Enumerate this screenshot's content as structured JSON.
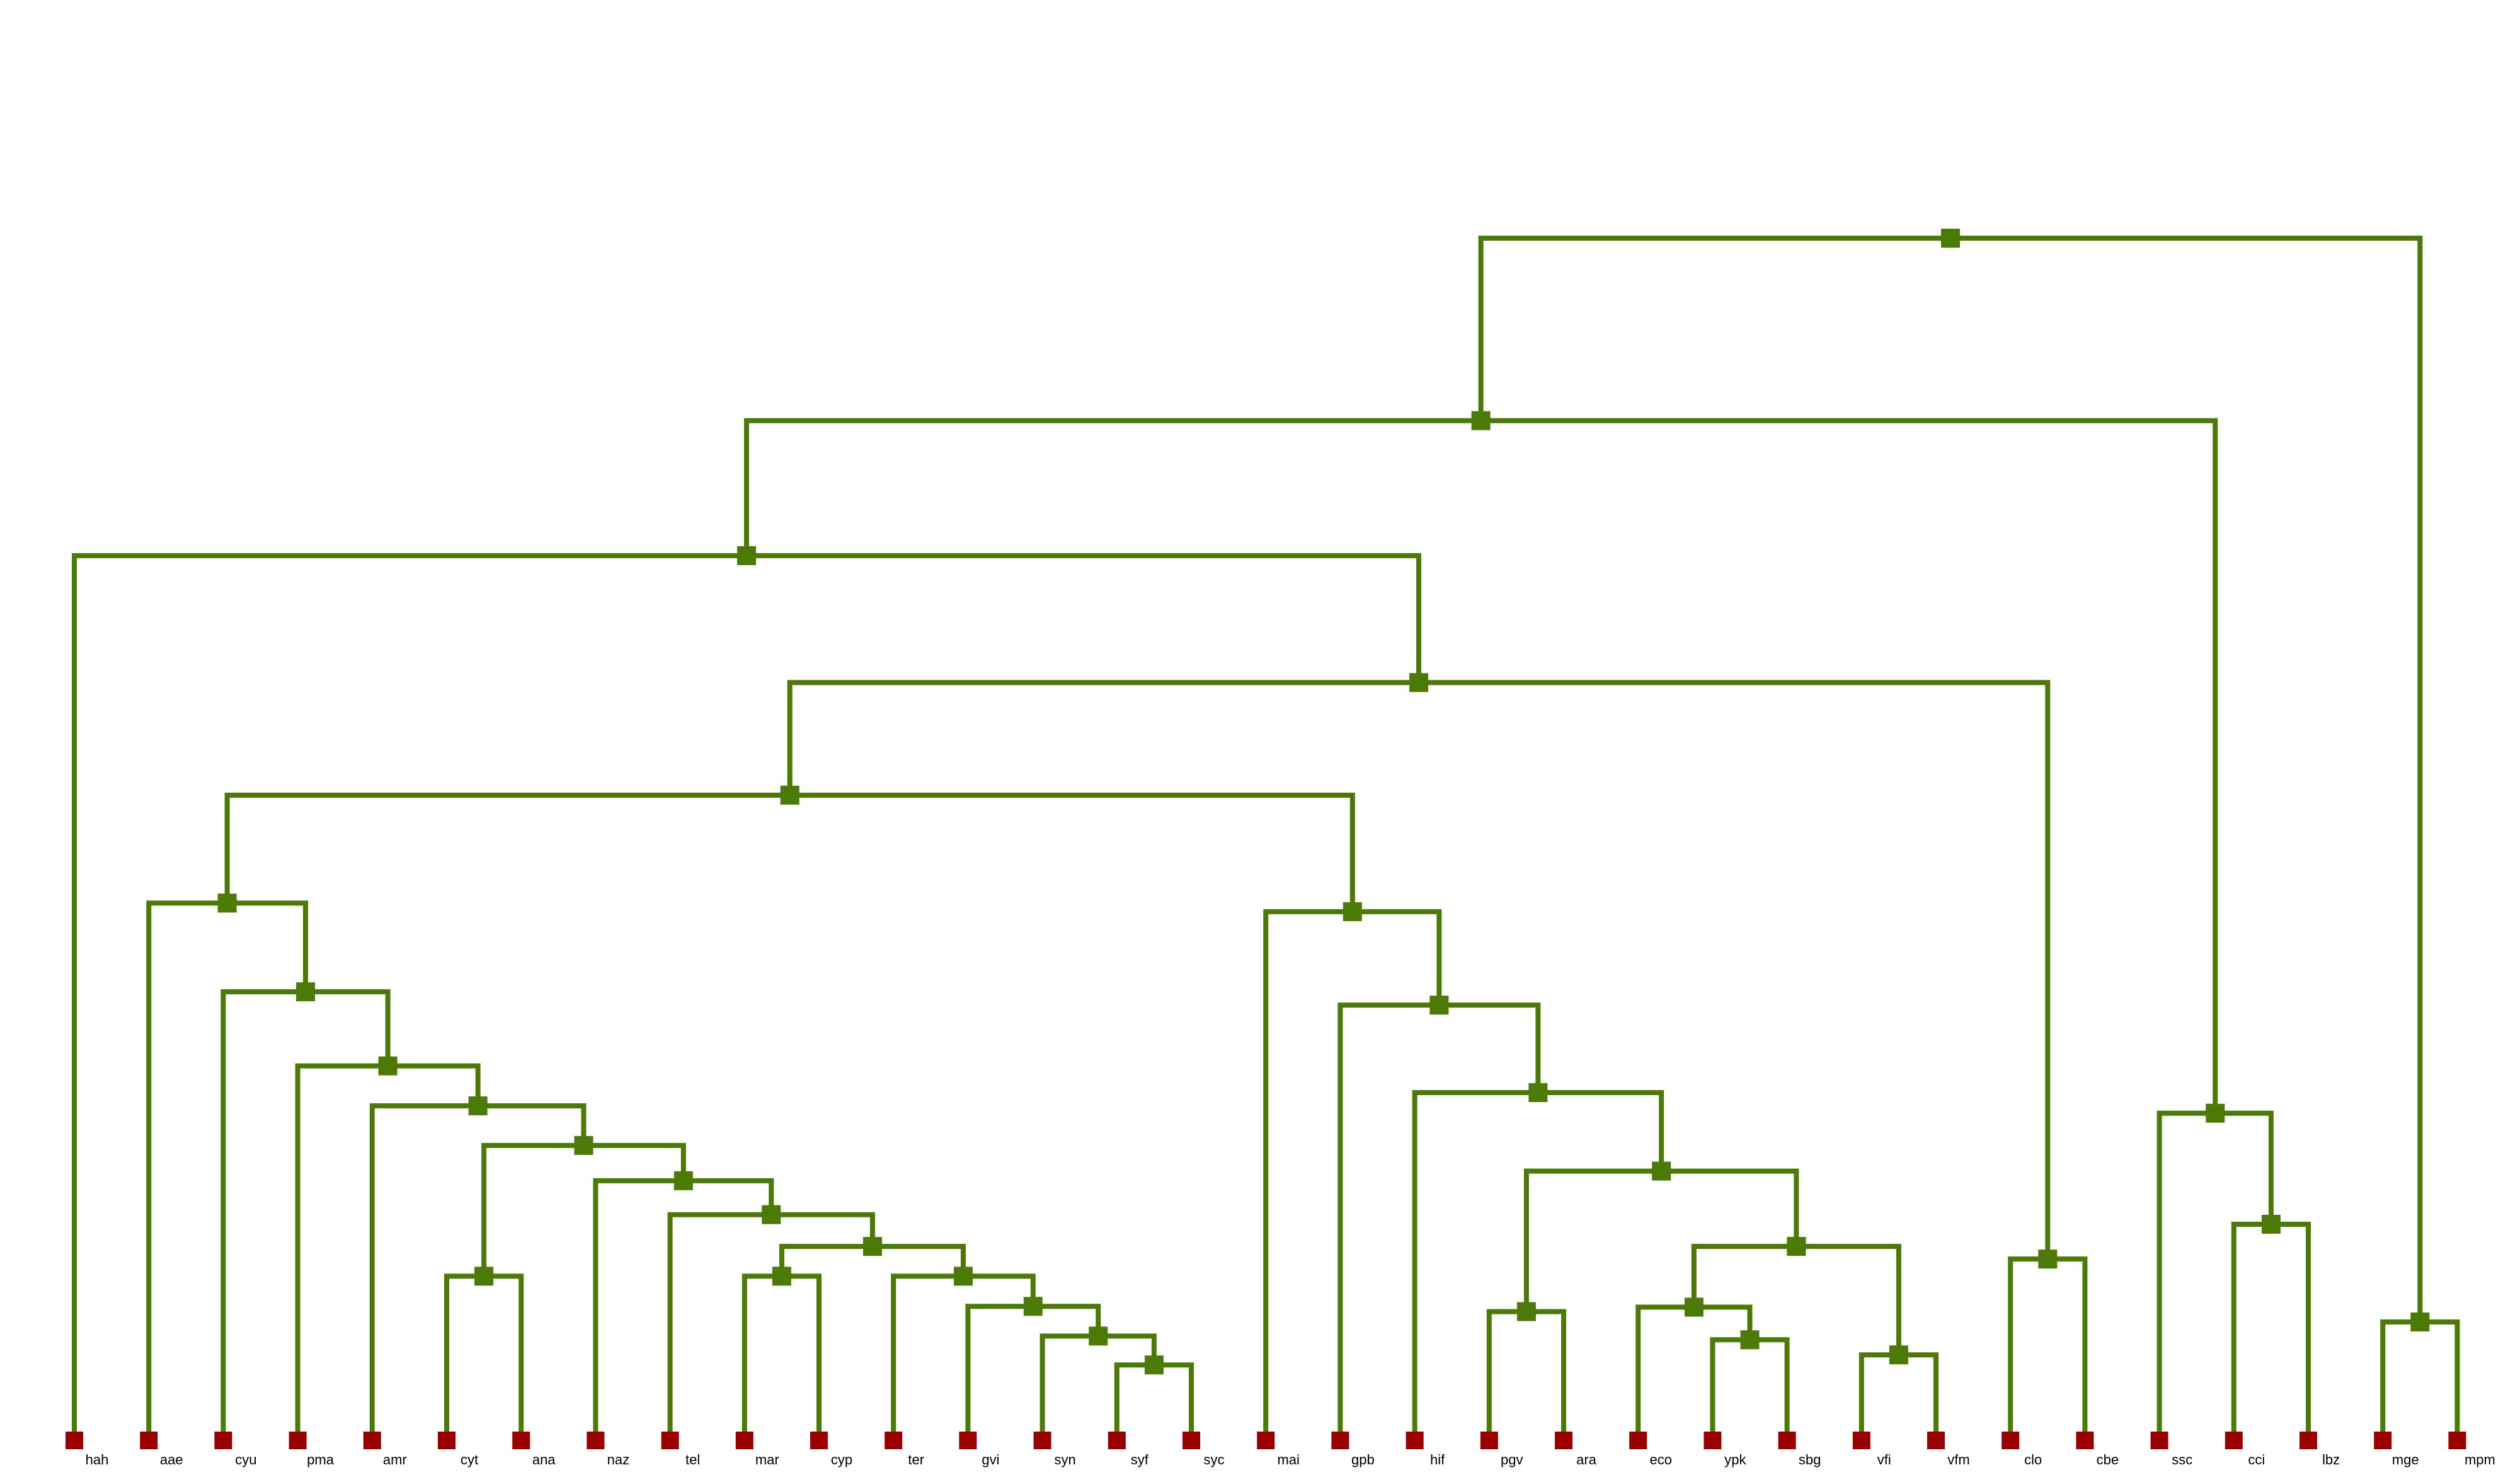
{
  "colors": {
    "edge": "#4c7a06",
    "inner_node": "#4c7a06",
    "leaf_node": "#9b0000",
    "label": "#000000",
    "background": "#ffffff"
  },
  "leaves": [
    "hah",
    "aae",
    "cyu",
    "pma",
    "amr",
    "cyt",
    "ana",
    "naz",
    "tel",
    "mar",
    "cyp",
    "ter",
    "gvi",
    "syn",
    "syf",
    "syc",
    "mai",
    "gpb",
    "hif",
    "pgv",
    "ara",
    "eco",
    "ypk",
    "sbg",
    "vfi",
    "vfm",
    "clo",
    "cbe",
    "ssc",
    "cci",
    "lbz",
    "mge",
    "mpm"
  ],
  "tree": {
    "h": 0.0,
    "children": [
      {
        "h": 0.2125,
        "children": [
          {
            "h": 0.3697,
            "children": [
              {
                "leaf": "hah"
              },
              {
                "h": 0.5175,
                "children": [
                  {
                    "h": 0.6486,
                    "children": [
                      {
                        "h": 0.7743,
                        "children": [
                          {
                            "leaf": "aae"
                          },
                          {
                            "h": 0.8776,
                            "children": [
                              {
                                "leaf": "cyu"
                              },
                              {
                                "h": 0.9639,
                                "children": [
                                  {
                                    "leaf": "pma"
                                  },
                                  {
                                    "h": 1.0104,
                                    "children": [
                                      {
                                        "leaf": "amr"
                                      },
                                      {
                                        "h": 1.0565,
                                        "children": [
                                          {
                                            "h": 1.2088,
                                            "children": [
                                              {
                                                "leaf": "cyt"
                                              },
                                              {
                                                "leaf": "ana"
                                              }
                                            ]
                                          },
                                          {
                                            "h": 1.0976,
                                            "children": [
                                              {
                                                "leaf": "naz"
                                              },
                                              {
                                                "h": 1.1371,
                                                "children": [
                                                  {
                                                    "leaf": "tel"
                                                  },
                                                  {
                                                    "h": 1.1741,
                                                    "children": [
                                                      {
                                                        "h": 1.2088,
                                                        "children": [
                                                          {
                                                            "leaf": "mar"
                                                          },
                                                          {
                                                            "leaf": "cyp"
                                                          }
                                                        ]
                                                      },
                                                      {
                                                        "h": 1.2088,
                                                        "children": [
                                                          {
                                                            "leaf": "ter"
                                                          },
                                                          {
                                                            "h": 1.2439,
                                                            "children": [
                                                              {
                                                                "leaf": "gvi"
                                                              },
                                                              {
                                                                "h": 1.2785,
                                                                "children": [
                                                                  {
                                                                    "leaf": "syn"
                                                                  },
                                                                  {
                                                                    "h": 1.3121,
                                                                    "children": [
                                                                      {
                                                                        "leaf": "syf"
                                                                      },
                                                                      {
                                                                        "leaf": "syc"
                                                                      }
                                                                    ]
                                                                  }
                                                                ]
                                                              }
                                                            ]
                                                          }
                                                        ]
                                                      }
                                                    ]
                                                  }
                                                ]
                                              }
                                            ]
                                          }
                                        ]
                                      }
                                    ]
                                  }
                                ]
                              }
                            ]
                          }
                        ]
                      },
                      {
                        "h": 0.7843,
                        "children": [
                          {
                            "leaf": "mai"
                          },
                          {
                            "h": 0.8931,
                            "children": [
                              {
                                "leaf": "gpb"
                              },
                              {
                                "h": 0.995,
                                "children": [
                                  {
                                    "leaf": "hif"
                                  },
                                  {
                                    "h": 1.0864,
                                    "children": [
                                      {
                                        "h": 1.25,
                                        "children": [
                                          {
                                            "leaf": "pgv"
                                          },
                                          {
                                            "leaf": "ara"
                                          }
                                        ]
                                      },
                                      {
                                        "h": 1.1741,
                                        "children": [
                                          {
                                            "h": 1.2448,
                                            "children": [
                                              {
                                                "leaf": "eco"
                                              },
                                              {
                                                "h": 1.2828,
                                                "children": [
                                                  {
                                                    "leaf": "ypk"
                                                  },
                                                  {
                                                    "leaf": "sbg"
                                                  }
                                                ]
                                              }
                                            ]
                                          },
                                          {
                                            "h": 1.3004,
                                            "children": [
                                              {
                                                "leaf": "vfi"
                                              },
                                              {
                                                "leaf": "vfm"
                                              }
                                            ]
                                          }
                                        ]
                                      }
                                    ]
                                  }
                                ]
                              }
                            ]
                          }
                        ]
                      }
                    ]
                  },
                  {
                    "h": 1.1888,
                    "children": [
                      {
                        "leaf": "clo"
                      },
                      {
                        "leaf": "cbe"
                      }
                    ]
                  }
                ]
              }
            ]
          },
          {
            "h": 1.019,
            "children": [
              {
                "leaf": "ssc"
              },
              {
                "h": 1.1483,
                "children": [
                  {
                    "leaf": "cci"
                  },
                  {
                    "leaf": "lbz"
                  }
                ]
              }
            ]
          }
        ]
      },
      {
        "h": 1.2621,
        "children": [
          {
            "leaf": "mge"
          },
          {
            "leaf": "mpm"
          }
        ]
      }
    ]
  }
}
